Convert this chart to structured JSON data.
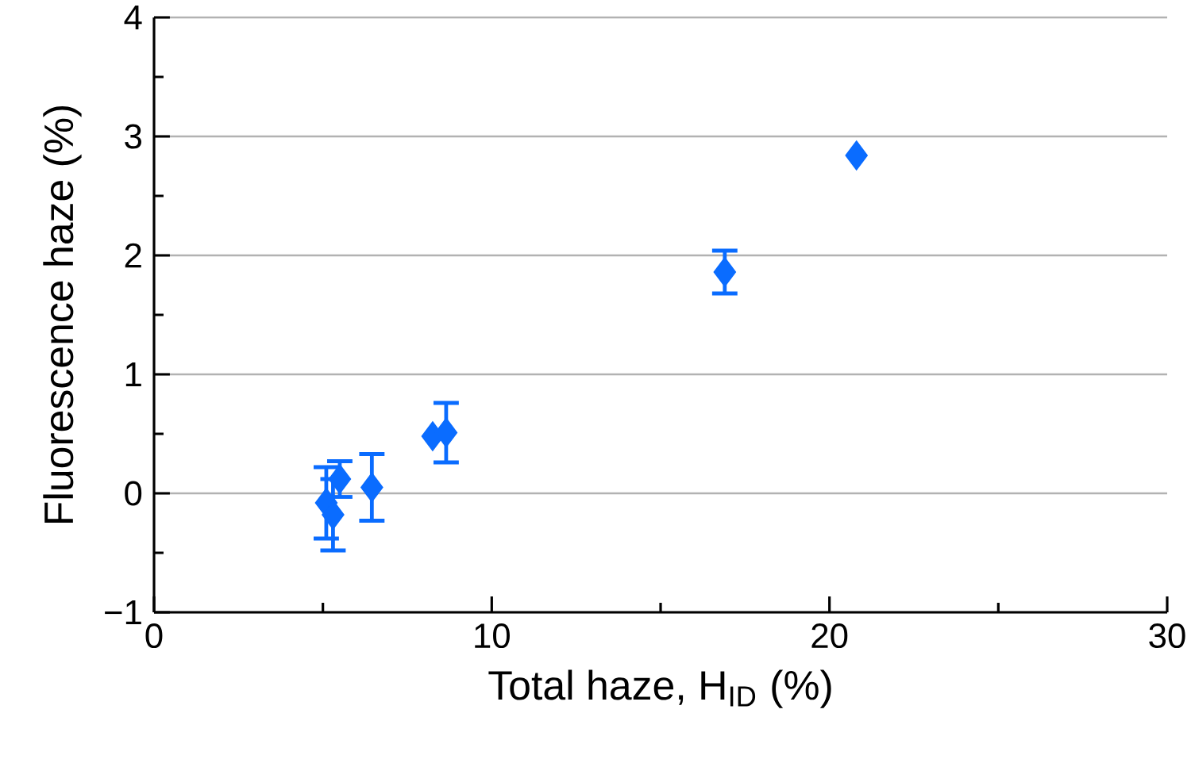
{
  "chart_data": {
    "type": "scatter",
    "xlabel": "Total haze, H$_{ID}$ (%)",
    "ylabel": "Fluorescence haze (%)",
    "x": [
      5.1,
      5.3,
      5.5,
      6.45,
      8.25,
      8.65,
      16.9,
      20.8
    ],
    "values": [
      -0.08,
      -0.18,
      0.12,
      0.05,
      0.48,
      0.51,
      1.86,
      2.84
    ],
    "errors": [
      0.3,
      0.3,
      0.15,
      0.28,
      null,
      0.25,
      0.18,
      null
    ],
    "color": "#0a6cff",
    "marker": "diamond",
    "grid": "y",
    "xlim": [
      0,
      30
    ],
    "xticks": [
      0,
      10,
      20,
      30
    ],
    "ylim": [
      -1,
      4
    ],
    "yticks": [
      {
        "value": -1,
        "label": "−1"
      },
      0,
      1,
      2,
      3,
      4
    ]
  }
}
